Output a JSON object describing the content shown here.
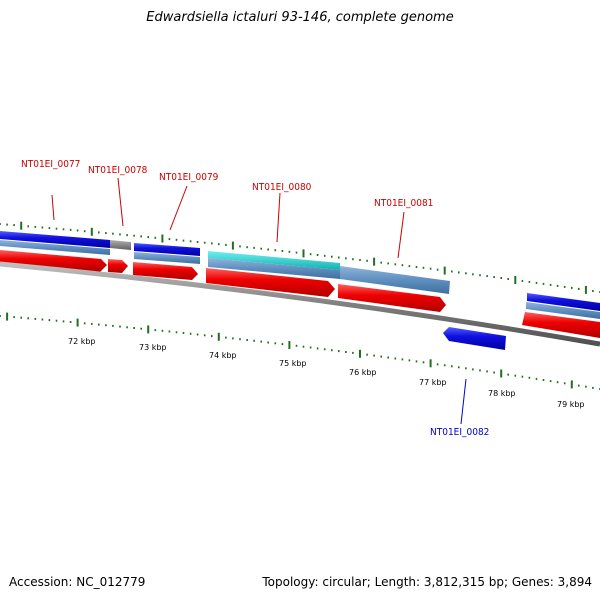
{
  "title": "Edwardsiella ictaluri 93-146, complete genome",
  "footer": {
    "accession": "Accession: NC_012779",
    "summary": "Topology: circular; Length: 3,812,315 bp; Genes: 3,894"
  },
  "genes": [
    {
      "id": "NT01EI_0077",
      "strand": "+",
      "color": "#cc0000"
    },
    {
      "id": "NT01EI_0078",
      "strand": "+",
      "color": "#cc0000"
    },
    {
      "id": "NT01EI_0079",
      "strand": "+",
      "color": "#cc0000"
    },
    {
      "id": "NT01EI_0080",
      "strand": "+",
      "color": "#cc0000"
    },
    {
      "id": "NT01EI_0081",
      "strand": "+",
      "color": "#cc0000"
    },
    {
      "id": "NT01EI_0082",
      "strand": "-",
      "color": "#0000cc"
    }
  ],
  "scale_labels": [
    "72 kbp",
    "73 kbp",
    "74 kbp",
    "75 kbp",
    "76 kbp",
    "77 kbp",
    "78 kbp",
    "79 kbp"
  ],
  "colors": {
    "forward_cds": "#ee0000",
    "reverse_cds": "#0000ee",
    "blast_blue": "#1010d0",
    "steel": "#5f8fbf",
    "cyan": "#20c8c8",
    "gray": "#808080",
    "tick_green": "#207020",
    "backbone": "#808080"
  }
}
